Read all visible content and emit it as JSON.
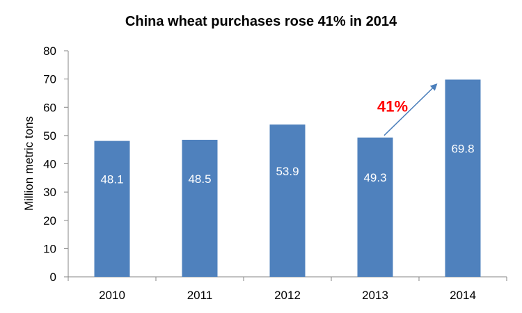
{
  "chart_data": {
    "type": "bar",
    "title": "China wheat purchases rose 41% in 2014",
    "xlabel": "",
    "ylabel": "Million metric tons",
    "categories": [
      "2010",
      "2011",
      "2012",
      "2013",
      "2014"
    ],
    "values": [
      48.1,
      48.5,
      53.9,
      49.3,
      69.8
    ],
    "data_labels": [
      "48.1",
      "48.5",
      "53.9",
      "49.3",
      "69.8"
    ],
    "ylim": [
      0,
      80
    ],
    "yticks": [
      "0",
      "10",
      "20",
      "30",
      "40",
      "50",
      "60",
      "70",
      "80"
    ],
    "grid": false,
    "legend": "none",
    "bar_color": "#4F81BD",
    "annotation": {
      "text": "41%",
      "color": "#FF0000",
      "arrow_color": "#4A7EBB",
      "from_category": "2013",
      "to_category": "2014"
    }
  }
}
